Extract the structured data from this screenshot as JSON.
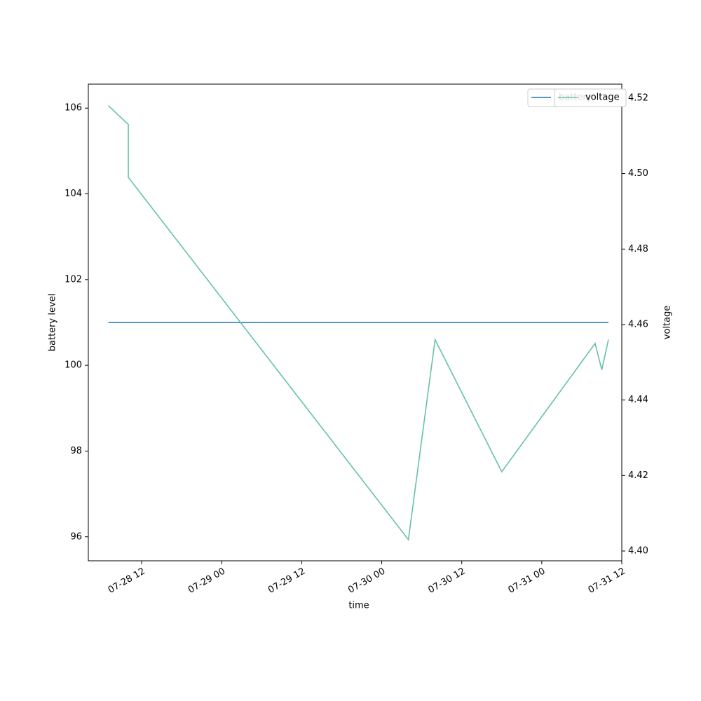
{
  "chart_data": {
    "type": "line",
    "x": [
      "07-28 07",
      "07-28 10",
      "07-28 10",
      "07-30 04",
      "07-30 08",
      "07-30 18",
      "07-31 08",
      "07-31 09",
      "07-31 10"
    ],
    "xlim": [
      "07-28 04",
      "07-31 12"
    ],
    "xticks": [
      "07-28 12",
      "07-29 00",
      "07-29 12",
      "07-30 00",
      "07-30 12",
      "07-31 00",
      "07-31 12"
    ],
    "xlabel": "time",
    "ylabel": "battery level",
    "y2label": "voltage",
    "ylim": [
      95.44,
      106.56
    ],
    "yticks": [
      96,
      98,
      100,
      102,
      104,
      106
    ],
    "y2lim": [
      4.3974,
      4.5237
    ],
    "y2ticks": [
      {
        "value": 4.4,
        "label": "4.40"
      },
      4.42,
      4.44,
      4.46,
      4.48,
      {
        "value": 4.5,
        "label": "4.50"
      },
      4.52
    ],
    "series": [
      {
        "name": "battery",
        "color": "#1f77b4",
        "values": [
          101,
          101,
          101,
          101,
          101,
          101,
          101,
          101,
          101
        ]
      },
      {
        "name": "voltage",
        "color": "#66c2a5",
        "axis": "y2",
        "values": [
          4.518,
          4.513,
          4.499,
          4.403,
          4.456,
          4.421,
          4.455,
          4.448,
          4.456
        ]
      }
    ]
  }
}
